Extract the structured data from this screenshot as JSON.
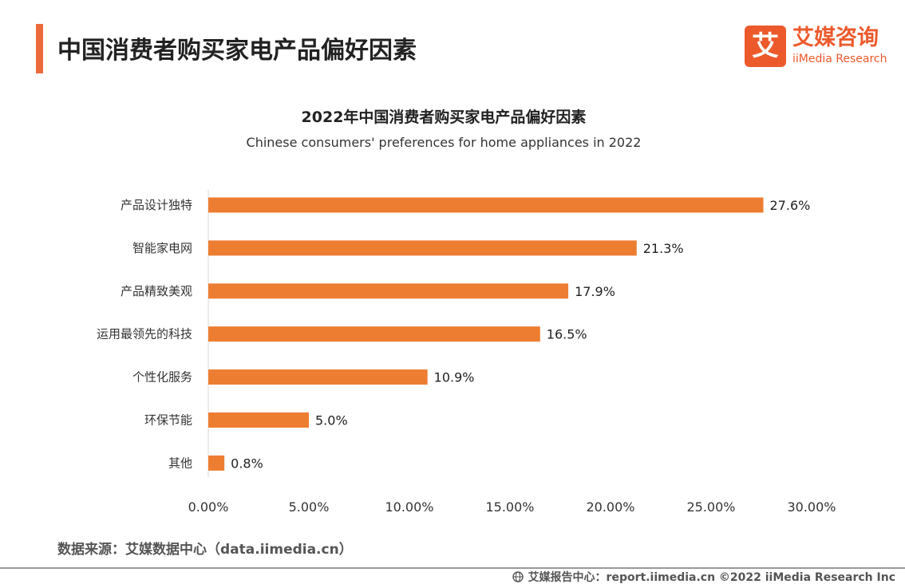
{
  "header": {
    "title": "中国消费者购买家电产品偏好因素",
    "accent_color": "#ec6a3a"
  },
  "logo": {
    "glyph": "艾",
    "name_cn": "艾媒咨询",
    "name_en": "iiMedia Research",
    "color": "#ec5a2c"
  },
  "chart_data": {
    "type": "bar",
    "orientation": "horizontal",
    "title": "2022年中国消费者购买家电产品偏好因素",
    "subtitle": "Chinese consumers' preferences for home appliances in 2022",
    "categories": [
      "产品设计独特",
      "智能家电网",
      "产品精致美观",
      "运用最领先的科技",
      "个性化服务",
      "环保节能",
      "其他"
    ],
    "values": [
      27.6,
      21.3,
      17.9,
      16.5,
      10.9,
      5.0,
      0.8
    ],
    "value_labels": [
      "27.6%",
      "21.3%",
      "17.9%",
      "16.5%",
      "10.9%",
      "5.0%",
      "0.8%"
    ],
    "xlim": [
      0,
      30
    ],
    "x_ticks": [
      0,
      5,
      10,
      15,
      20,
      25,
      30
    ],
    "x_tick_labels": [
      "0.00%",
      "5.00%",
      "10.00%",
      "15.00%",
      "20.00%",
      "25.00%",
      "30.00%"
    ],
    "bar_color": "#ed7d31",
    "grid": false,
    "legend": "none"
  },
  "source": "数据来源：艾媒数据中心（data.iimedia.cn）",
  "footer": {
    "icon": "globe-icon",
    "text": "艾媒报告中心：report.iimedia.cn  ©2022  iiMedia Research  Inc"
  }
}
